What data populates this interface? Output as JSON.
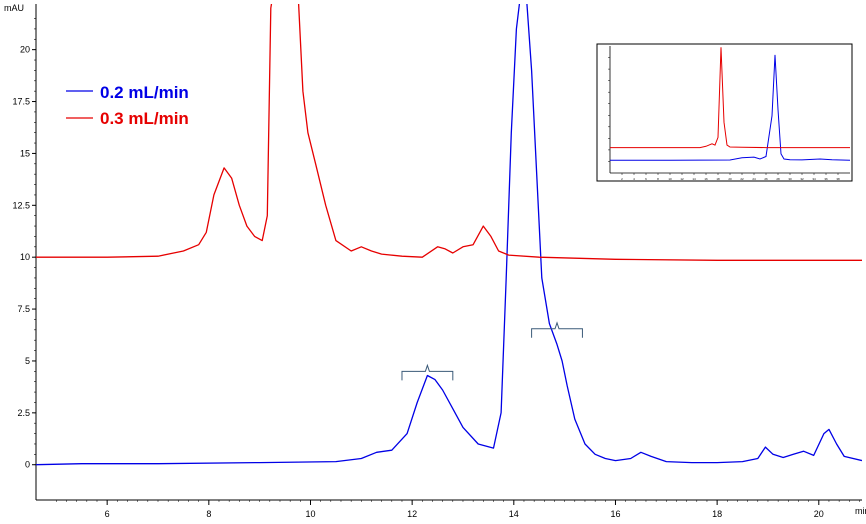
{
  "chart_data": {
    "type": "line",
    "ylabel": "mAU",
    "xlabel": "min",
    "xlim": [
      4.6,
      20.85
    ],
    "ylim": [
      -1.7,
      22.2
    ],
    "x_ticks": [
      "6",
      "8",
      "10",
      "12",
      "14",
      "16",
      "18",
      "20"
    ],
    "y_ticks": [
      "0",
      "2.5",
      "5",
      "7.5",
      "10",
      "12.5",
      "15",
      "17.5",
      "20"
    ],
    "legend": [
      {
        "label": "0.2 mL/min",
        "color": "#0000e6"
      },
      {
        "label": "0.3 mL/min",
        "color": "#e60000"
      }
    ],
    "legend_placement": "top-left",
    "series": [
      {
        "name": "0.2 mL/min",
        "color": "#0000e6",
        "x": [
          4.6,
          5.5,
          7.0,
          9.0,
          10.5,
          11.0,
          11.3,
          11.6,
          11.9,
          12.1,
          12.3,
          12.45,
          12.6,
          12.8,
          13.0,
          13.3,
          13.6,
          13.75,
          13.85,
          13.95,
          14.05,
          14.15,
          14.25,
          14.35,
          14.45,
          14.55,
          14.7,
          14.85,
          14.95,
          15.05,
          15.2,
          15.4,
          15.6,
          15.8,
          16.0,
          16.3,
          16.5,
          16.7,
          17.0,
          17.5,
          18.0,
          18.5,
          18.8,
          18.95,
          19.1,
          19.3,
          19.5,
          19.7,
          19.9,
          20.1,
          20.2,
          20.35,
          20.5,
          20.85
        ],
        "y": [
          0.0,
          0.05,
          0.05,
          0.1,
          0.15,
          0.3,
          0.6,
          0.7,
          1.5,
          3.0,
          4.3,
          4.1,
          3.6,
          2.7,
          1.8,
          1.0,
          0.8,
          2.5,
          9.0,
          16.0,
          21.0,
          23.0,
          22.5,
          19.0,
          14.0,
          9.0,
          6.8,
          5.8,
          5.0,
          3.8,
          2.2,
          1.0,
          0.5,
          0.3,
          0.2,
          0.3,
          0.6,
          0.4,
          0.15,
          0.1,
          0.1,
          0.15,
          0.3,
          0.85,
          0.5,
          0.35,
          0.5,
          0.65,
          0.45,
          1.5,
          1.7,
          1.0,
          0.4,
          0.2
        ]
      },
      {
        "name": "0.3 mL/min",
        "color": "#e60000",
        "x": [
          4.6,
          6.0,
          7.0,
          7.5,
          7.8,
          7.95,
          8.1,
          8.3,
          8.45,
          8.6,
          8.75,
          8.9,
          9.05,
          9.15,
          9.22,
          9.35,
          9.55,
          9.75,
          9.85,
          9.95,
          10.1,
          10.3,
          10.5,
          10.8,
          11.0,
          11.2,
          11.4,
          11.8,
          12.2,
          12.5,
          12.65,
          12.8,
          13.0,
          13.2,
          13.4,
          13.55,
          13.7,
          13.9,
          14.5,
          16.0,
          18.0,
          20.0,
          20.85
        ],
        "y": [
          10.0,
          10.0,
          10.05,
          10.3,
          10.6,
          11.2,
          13.0,
          14.3,
          13.8,
          12.5,
          11.5,
          11.0,
          10.8,
          12.0,
          22.0,
          24.0,
          24.0,
          23.0,
          18.0,
          16.0,
          14.5,
          12.5,
          10.8,
          10.3,
          10.5,
          10.3,
          10.15,
          10.05,
          10.0,
          10.5,
          10.4,
          10.2,
          10.5,
          10.6,
          11.5,
          11.0,
          10.3,
          10.1,
          10.0,
          9.9,
          9.85,
          9.85,
          9.85
        ]
      }
    ],
    "annotations": [
      {
        "type": "bracket",
        "x_start": 11.8,
        "x_end": 12.8,
        "y": 4.5
      },
      {
        "type": "bracket",
        "x_start": 14.35,
        "x_end": 15.35,
        "y": 6.55
      }
    ],
    "inset": {
      "description_free": true,
      "xlim": [
        0,
        40
      ],
      "ylim": [
        0,
        100
      ],
      "x_ticks": [
        "2",
        "4",
        "6",
        "8",
        "10",
        "12",
        "14",
        "16",
        "18",
        "20",
        "22",
        "24",
        "26",
        "28",
        "30",
        "32",
        "34",
        "36",
        "38"
      ],
      "series": [
        {
          "name": "0.2 mL/min",
          "color": "#0000e6",
          "x": [
            0,
            10,
            20,
            22,
            24,
            25,
            26,
            27,
            27.5,
            28,
            28.5,
            29,
            30,
            32,
            35,
            37,
            40
          ],
          "y": [
            10,
            10,
            10.2,
            12,
            12.5,
            11,
            13,
            45,
            93,
            50,
            15,
            11,
            10.5,
            10.3,
            11,
            10.5,
            10
          ]
        },
        {
          "name": "0.3 mL/min",
          "color": "#e60000",
          "x": [
            0,
            15,
            16,
            17,
            17.5,
            18,
            18.5,
            19,
            19.5,
            20,
            22,
            26,
            30,
            40
          ],
          "y": [
            20,
            20,
            21,
            23,
            22,
            28,
            99,
            40,
            22,
            20.5,
            20.2,
            20,
            20,
            20
          ]
        }
      ]
    }
  }
}
